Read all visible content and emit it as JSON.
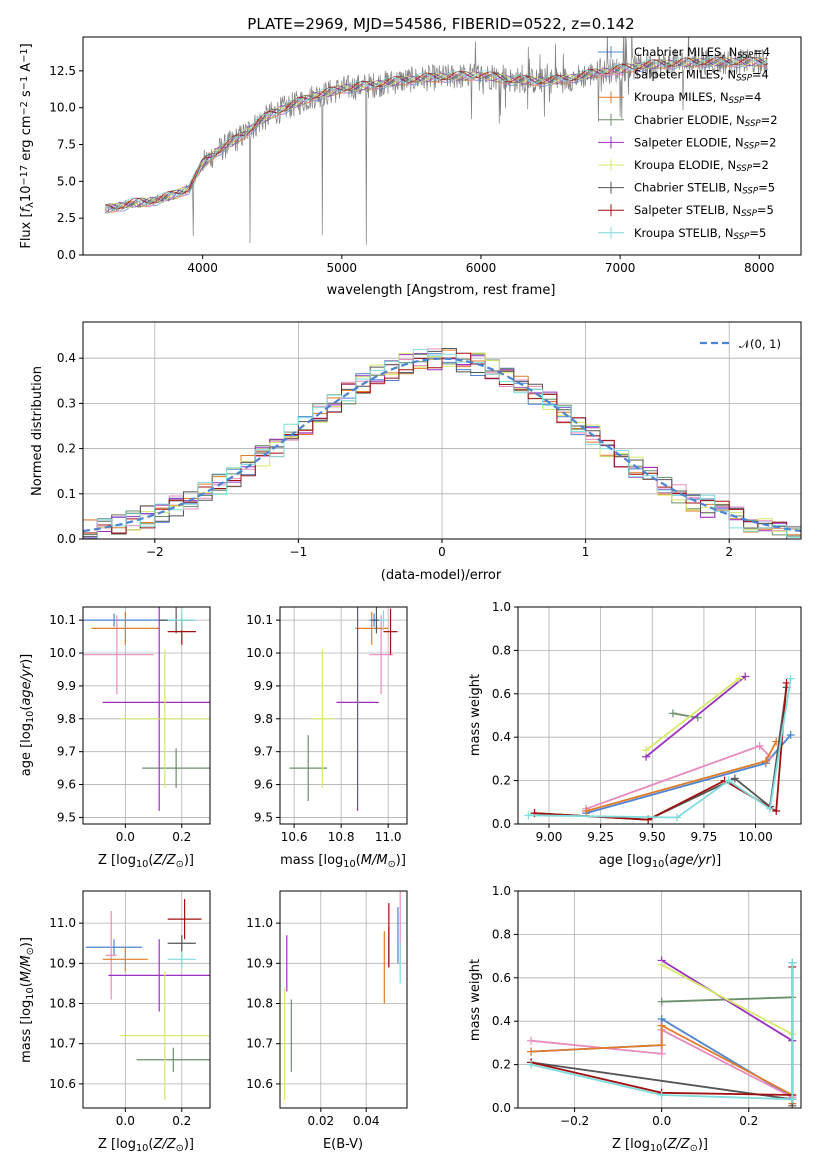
{
  "figure_title": "PLATE=2969, MJD=54586, FIBERID=0522, z=0.142",
  "chart_data": [
    {
      "id": "spectrum",
      "type": "line",
      "title": "PLATE=2969, MJD=54586, FIBERID=0522, z=0.142",
      "xlabel": "wavelength [Angstrom, rest frame]",
      "ylabel": "Flux [f_λ 10^-17 erg cm^-2 s^-1 A^-1]",
      "xlim": [
        3140,
        8300
      ],
      "ylim": [
        0,
        14.8
      ],
      "xticks": [
        4000,
        5000,
        6000,
        7000,
        8000
      ],
      "yticks": [
        0.0,
        2.5,
        5.0,
        7.5,
        10.0,
        12.5
      ],
      "legend_position": "top-right",
      "grid": false,
      "continuum": {
        "x": [
          3300,
          3400,
          3500,
          3600,
          3700,
          3800,
          3900,
          4000,
          4100,
          4200,
          4300,
          4400,
          4500,
          4600,
          4700,
          4800,
          4900,
          5000,
          5200,
          5400,
          5600,
          5800,
          6000,
          6200,
          6400,
          6600,
          6800,
          7000,
          7200,
          7400,
          7600,
          7800,
          8000
        ],
        "y": [
          3.1,
          3.3,
          3.5,
          3.6,
          3.8,
          4.1,
          4.5,
          6.2,
          7.0,
          7.6,
          8.2,
          9.0,
          9.6,
          10.0,
          10.4,
          10.8,
          11.0,
          11.3,
          11.5,
          11.8,
          12.0,
          12.1,
          12.2,
          11.9,
          11.8,
          11.9,
          12.3,
          12.6,
          12.9,
          13.0,
          13.1,
          13.1,
          13.1
        ]
      },
      "series": [
        {
          "name": "Chabrier MILES",
          "nssp": "4",
          "color": "#4c84d3"
        },
        {
          "name": "Salpeter MILES",
          "nssp": "4",
          "color": "#e98bbf"
        },
        {
          "name": "Kroupa MILES",
          "nssp": "4",
          "color": "#e07b2a"
        },
        {
          "name": "Chabrier ELODIE",
          "nssp": "2",
          "color": "#6b8f6b"
        },
        {
          "name": "Salpeter ELODIE",
          "nssp": "2",
          "color": "#9b30c0"
        },
        {
          "name": "Kroupa ELODIE",
          "nssp": "2",
          "color": "#d6e86a"
        },
        {
          "name": "Chabrier STELIB",
          "nssp": "5",
          "color": "#555555"
        },
        {
          "name": "Salpeter STELIB",
          "nssp": "5",
          "color": "#a01010"
        },
        {
          "name": "Kroupa STELIB",
          "nssp": "5",
          "color": "#7fdcdc"
        }
      ]
    },
    {
      "id": "residuals",
      "type": "line",
      "xlabel": "(data-model)/error",
      "ylabel": "Normed distribution",
      "xlim": [
        -2.5,
        2.5
      ],
      "ylim": [
        0,
        0.48
      ],
      "xticks": [
        -2,
        -1,
        0,
        1,
        2
      ],
      "yticks": [
        0.0,
        0.1,
        0.2,
        0.3,
        0.4
      ],
      "grid": true,
      "legend_position": "top-right",
      "reference_curve": {
        "name": "𝒩(0, 1)",
        "color": "#4c84d3"
      },
      "bin_width": 0.1,
      "bins_start": -2.5,
      "hist_colors": [
        "#4c84d3",
        "#e98bbf",
        "#e07b2a",
        "#6b8f6b",
        "#9b30c0",
        "#d6e86a",
        "#555555",
        "#a01010",
        "#7fdcdc"
      ]
    },
    {
      "id": "age-vs-Z",
      "type": "scatter",
      "xlabel": "Z [log10(Z/Z⊙)]",
      "ylabel": "age [log10(age/yr)]",
      "xlim": [
        -0.15,
        0.3
      ],
      "ylim": [
        9.48,
        10.14
      ],
      "xticks": [
        0.0,
        0.2
      ],
      "yticks": [
        9.5,
        9.6,
        9.7,
        9.8,
        9.9,
        10.0,
        10.1
      ],
      "grid": true,
      "points": [
        {
          "x": -0.04,
          "y": 10.1,
          "xerr": 0.21,
          "yerr": 0.02,
          "color": "#4c84d3"
        },
        {
          "x": -0.03,
          "y": 9.995,
          "xerr": 0.13,
          "yerr": 0.12,
          "color": "#e98bbf"
        },
        {
          "x": 0.0,
          "y": 10.075,
          "xerr": 0.12,
          "yerr": 0.05,
          "color": "#e07b2a"
        },
        {
          "x": 0.18,
          "y": 9.65,
          "xerr": 0.12,
          "yerr": 0.06,
          "color": "#6b8f6b"
        },
        {
          "x": 0.12,
          "y": 9.85,
          "xerr": 0.2,
          "yerr": 0.33,
          "color": "#9b30c0"
        },
        {
          "x": 0.14,
          "y": 9.8,
          "xerr": 0.16,
          "yerr": 0.21,
          "color": "#d6e86a"
        },
        {
          "x": 0.18,
          "y": 10.1,
          "xerr": 0.06,
          "yerr": 0.04,
          "color": "#555555"
        },
        {
          "x": 0.2,
          "y": 10.065,
          "xerr": 0.05,
          "yerr": 0.04,
          "color": "#a01010"
        },
        {
          "x": 0.2,
          "y": 10.1,
          "xerr": 0.05,
          "yerr": 0.03,
          "color": "#7fdcdc"
        }
      ]
    },
    {
      "id": "age-vs-mass",
      "type": "scatter",
      "xlabel": "mass [log10(M/M⊙)]",
      "ylabel": "",
      "xlim": [
        10.54,
        11.08
      ],
      "ylim": [
        9.48,
        10.14
      ],
      "xticks": [
        10.6,
        10.8,
        11.0
      ],
      "yticks": [
        9.5,
        9.6,
        9.7,
        9.8,
        9.9,
        10.0,
        10.1
      ],
      "grid": true,
      "points": [
        {
          "x": 10.94,
          "y": 10.1,
          "xerr": 0.02,
          "yerr": 0.02,
          "color": "#4c84d3"
        },
        {
          "x": 10.97,
          "y": 9.995,
          "xerr": 0.05,
          "yerr": 0.12,
          "color": "#e98bbf"
        },
        {
          "x": 10.93,
          "y": 10.075,
          "xerr": 0.07,
          "yerr": 0.05,
          "color": "#e07b2a"
        },
        {
          "x": 10.66,
          "y": 9.65,
          "xerr": 0.08,
          "yerr": 0.1,
          "color": "#6b8f6b"
        },
        {
          "x": 10.87,
          "y": 9.85,
          "xerr": 0.09,
          "yerr": 0.33,
          "color": "#9b30c0"
        },
        {
          "x": 10.72,
          "y": 9.8,
          "xerr": 0.05,
          "yerr": 0.21,
          "color": "#d6e86a"
        },
        {
          "x": 10.95,
          "y": 10.1,
          "xerr": 0.02,
          "yerr": 0.04,
          "color": "#555555"
        },
        {
          "x": 11.01,
          "y": 10.065,
          "xerr": 0.03,
          "yerr": 0.07,
          "color": "#a01010"
        },
        {
          "x": 10.98,
          "y": 10.1,
          "xerr": 0.02,
          "yerr": 0.03,
          "color": "#7fdcdc"
        }
      ]
    },
    {
      "id": "weight-vs-age",
      "type": "line",
      "xlabel": "age [log10(age/yr)]",
      "ylabel": "mass weight",
      "xlim": [
        8.85,
        10.22
      ],
      "ylim": [
        0,
        1.0
      ],
      "xticks": [
        9.0,
        9.25,
        9.5,
        9.75,
        10.0
      ],
      "yticks": [
        0.0,
        0.2,
        0.4,
        0.6,
        0.8,
        1.0
      ],
      "grid": true,
      "series": [
        {
          "color": "#4c84d3",
          "x": [
            9.18,
            10.05,
            10.17
          ],
          "y": [
            0.05,
            0.28,
            0.41
          ]
        },
        {
          "color": "#e98bbf",
          "x": [
            9.18,
            10.02,
            10.07
          ],
          "y": [
            0.07,
            0.36,
            0.31
          ]
        },
        {
          "color": "#e07b2a",
          "x": [
            9.18,
            10.05,
            10.1
          ],
          "y": [
            0.06,
            0.29,
            0.38
          ]
        },
        {
          "color": "#6b8f6b",
          "x": [
            9.6,
            9.72
          ],
          "y": [
            0.51,
            0.49
          ]
        },
        {
          "color": "#9b30c0",
          "x": [
            9.47,
            9.95
          ],
          "y": [
            0.31,
            0.68
          ]
        },
        {
          "color": "#d6e86a",
          "x": [
            9.47,
            9.92
          ],
          "y": [
            0.34,
            0.67
          ]
        },
        {
          "color": "#555555",
          "x": [
            8.93,
            9.48,
            9.9,
            10.07,
            10.15
          ],
          "y": [
            0.05,
            0.02,
            0.21,
            0.08,
            0.63
          ]
        },
        {
          "color": "#a01010",
          "x": [
            8.93,
            9.48,
            9.85,
            10.1,
            10.15
          ],
          "y": [
            0.05,
            0.02,
            0.2,
            0.06,
            0.65
          ]
        },
        {
          "color": "#7fdcdc",
          "x": [
            8.9,
            9.62,
            9.87,
            10.07,
            10.17
          ],
          "y": [
            0.04,
            0.03,
            0.2,
            0.07,
            0.67
          ]
        }
      ]
    },
    {
      "id": "mass-vs-Z",
      "type": "scatter",
      "xlabel": "Z [log10(Z/Z⊙)]",
      "ylabel": "mass [log10(M/M⊙)]",
      "xlim": [
        -0.15,
        0.3
      ],
      "ylim": [
        10.54,
        11.08
      ],
      "xticks": [
        0.0,
        0.2
      ],
      "yticks": [
        10.6,
        10.7,
        10.8,
        10.9,
        11.0
      ],
      "grid": true,
      "points": [
        {
          "x": -0.04,
          "y": 10.94,
          "xerr": 0.1,
          "yerr": 0.02,
          "color": "#4c84d3"
        },
        {
          "x": -0.05,
          "y": 10.92,
          "xerr": 0.02,
          "yerr": 0.11,
          "color": "#e98bbf"
        },
        {
          "x": 0.0,
          "y": 10.91,
          "xerr": 0.08,
          "yerr": 0.03,
          "color": "#e07b2a"
        },
        {
          "x": 0.17,
          "y": 10.66,
          "xerr": 0.13,
          "yerr": 0.03,
          "color": "#6b8f6b"
        },
        {
          "x": 0.12,
          "y": 10.87,
          "xerr": 0.18,
          "yerr": 0.09,
          "color": "#9b30c0"
        },
        {
          "x": 0.14,
          "y": 10.72,
          "xerr": 0.16,
          "yerr": 0.16,
          "color": "#d6e86a"
        },
        {
          "x": 0.2,
          "y": 10.95,
          "xerr": 0.05,
          "yerr": 0.02,
          "color": "#555555"
        },
        {
          "x": 0.21,
          "y": 11.01,
          "xerr": 0.06,
          "yerr": 0.05,
          "color": "#a01010"
        },
        {
          "x": 0.2,
          "y": 10.91,
          "xerr": 0.05,
          "yerr": 0.02,
          "color": "#7fdcdc"
        }
      ]
    },
    {
      "id": "mass-vs-ebv",
      "type": "scatter",
      "xlabel": "E(B-V)",
      "ylabel": "",
      "xlim": [
        0.002,
        0.058
      ],
      "ylim": [
        10.54,
        11.08
      ],
      "xticks": [
        0.02,
        0.04
      ],
      "yticks": [
        10.6,
        10.7,
        10.8,
        10.9,
        11.0
      ],
      "grid": true,
      "points": [
        {
          "x": 0.054,
          "y": 10.97,
          "xerr": 0.0,
          "yerr": 0.07,
          "color": "#4c84d3"
        },
        {
          "x": 0.055,
          "y": 10.99,
          "xerr": 0.0,
          "yerr": 0.09,
          "color": "#e98bbf"
        },
        {
          "x": 0.048,
          "y": 10.89,
          "xerr": 0.0,
          "yerr": 0.09,
          "color": "#e07b2a"
        },
        {
          "x": 0.007,
          "y": 10.72,
          "xerr": 0.0,
          "yerr": 0.09,
          "color": "#6b8f6b"
        },
        {
          "x": 0.005,
          "y": 10.9,
          "xerr": 0.0,
          "yerr": 0.07,
          "color": "#9b30c0"
        },
        {
          "x": 0.004,
          "y": 10.7,
          "xerr": 0.0,
          "yerr": 0.14,
          "color": "#d6e86a"
        },
        {
          "x": 0.05,
          "y": 10.94,
          "xerr": 0.0,
          "yerr": 0.05,
          "color": "#555555"
        },
        {
          "x": 0.05,
          "y": 10.97,
          "xerr": 0.0,
          "yerr": 0.08,
          "color": "#a01010"
        },
        {
          "x": 0.055,
          "y": 10.9,
          "xerr": 0.0,
          "yerr": 0.05,
          "color": "#7fdcdc"
        }
      ]
    },
    {
      "id": "weight-vs-Z",
      "type": "line",
      "xlabel": "Z [log10(Z/Z⊙)]",
      "ylabel": "mass weight",
      "xlim": [
        -0.33,
        0.32
      ],
      "ylim": [
        0,
        1.0
      ],
      "xticks": [
        -0.2,
        0.0,
        0.2
      ],
      "yticks": [
        0.0,
        0.2,
        0.4,
        0.6,
        0.8,
        1.0
      ],
      "grid": true,
      "series": [
        {
          "color": "#4c84d3",
          "x": [
            -0.3,
            0.0,
            0.0,
            0.3,
            0.3
          ],
          "y": [
            0.26,
            0.29,
            0.41,
            0.05,
            0.67
          ]
        },
        {
          "color": "#e98bbf",
          "x": [
            -0.3,
            0.0,
            0.0,
            0.3
          ],
          "y": [
            0.31,
            0.25,
            0.36,
            0.05
          ]
        },
        {
          "color": "#e07b2a",
          "x": [
            -0.3,
            0.0,
            0.0,
            0.3,
            0.3
          ],
          "y": [
            0.26,
            0.29,
            0.38,
            0.06,
            0.02
          ]
        },
        {
          "color": "#6b8f6b",
          "x": [
            0.0,
            0.3
          ],
          "y": [
            0.49,
            0.51
          ]
        },
        {
          "color": "#9b30c0",
          "x": [
            0.0,
            0.3
          ],
          "y": [
            0.68,
            0.31
          ]
        },
        {
          "color": "#d6e86a",
          "x": [
            0.0,
            0.3
          ],
          "y": [
            0.66,
            0.34
          ]
        },
        {
          "color": "#555555",
          "x": [
            -0.3,
            0.3,
            0.3
          ],
          "y": [
            0.21,
            0.04,
            0.01
          ]
        },
        {
          "color": "#a01010",
          "x": [
            -0.3,
            0.0,
            0.3,
            0.3
          ],
          "y": [
            0.21,
            0.07,
            0.06,
            0.65
          ]
        },
        {
          "color": "#7fdcdc",
          "x": [
            -0.3,
            0.0,
            0.3,
            0.3
          ],
          "y": [
            0.2,
            0.06,
            0.04,
            0.67
          ]
        }
      ]
    }
  ]
}
